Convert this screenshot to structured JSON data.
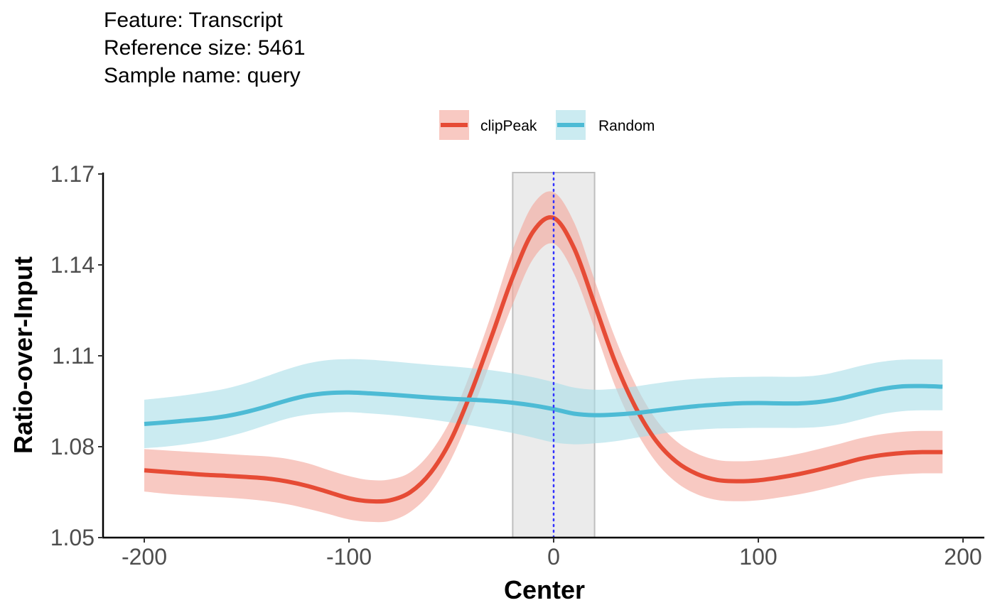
{
  "chart_data": {
    "type": "line",
    "title_lines": [
      "Feature: Transcript",
      "Reference size: 5461",
      "Sample name: query"
    ],
    "xlabel": "Center",
    "ylabel": "Ratio-over-Input",
    "xlim": [
      -200,
      200
    ],
    "ylim": [
      1.05,
      1.17
    ],
    "xticks": [
      "-200",
      "-100",
      "0",
      "100",
      "200"
    ],
    "yticks": [
      "1.05",
      "1.08",
      "1.11",
      "1.14",
      "1.17"
    ],
    "legend_position": "top",
    "grid": false,
    "highlight_region": [
      -20,
      20
    ],
    "center_line": 0,
    "x": [
      -200,
      -190,
      -180,
      -170,
      -160,
      -150,
      -140,
      -130,
      -120,
      -110,
      -100,
      -90,
      -80,
      -70,
      -60,
      -50,
      -40,
      -30,
      -20,
      -10,
      0,
      10,
      20,
      30,
      40,
      50,
      60,
      70,
      80,
      90,
      100,
      110,
      120,
      130,
      140,
      150,
      160,
      170,
      180,
      190
    ],
    "series": [
      {
        "name": "clipPeak",
        "color": "#E64B35",
        "band_color": "#F3A59A",
        "values": [
          1.0722,
          1.0717,
          1.0712,
          1.0707,
          1.0704,
          1.07,
          1.0695,
          1.0685,
          1.067,
          1.065,
          1.063,
          1.062,
          1.0623,
          1.065,
          1.0715,
          1.0825,
          1.0985,
          1.117,
          1.136,
          1.151,
          1.1555,
          1.1455,
          1.127,
          1.108,
          1.093,
          1.082,
          1.075,
          1.071,
          1.069,
          1.0686,
          1.0689,
          1.0698,
          1.071,
          1.0725,
          1.0742,
          1.076,
          1.0772,
          1.0779,
          1.0782,
          1.0782
        ],
        "lower": [
          1.0652,
          1.0645,
          1.064,
          1.0636,
          1.0632,
          1.0627,
          1.062,
          1.061,
          1.0595,
          1.0578,
          1.056,
          1.0552,
          1.0555,
          1.0585,
          1.065,
          1.076,
          1.0915,
          1.1095,
          1.127,
          1.142,
          1.147,
          1.137,
          1.119,
          1.1,
          1.0855,
          1.075,
          1.0682,
          1.0643,
          1.0624,
          1.062,
          1.0623,
          1.0632,
          1.0643,
          1.0657,
          1.0674,
          1.0692,
          1.0703,
          1.0709,
          1.0712,
          1.0712
        ],
        "upper": [
          1.0792,
          1.0788,
          1.0784,
          1.078,
          1.0776,
          1.0772,
          1.0768,
          1.076,
          1.0745,
          1.0723,
          1.0703,
          1.069,
          1.0692,
          1.0716,
          1.0783,
          1.0893,
          1.1055,
          1.1245,
          1.145,
          1.16,
          1.164,
          1.154,
          1.135,
          1.116,
          1.1005,
          1.089,
          1.0818,
          1.0777,
          1.0756,
          1.0752,
          1.0755,
          1.0764,
          1.0777,
          1.0793,
          1.081,
          1.0828,
          1.0841,
          1.0849,
          1.0852,
          1.0852
        ]
      },
      {
        "name": "Random",
        "color": "#4DBBD5",
        "band_color": "#A9DDE8",
        "values": [
          1.0875,
          1.088,
          1.0886,
          1.0892,
          1.0901,
          1.0915,
          1.0933,
          1.0953,
          1.0969,
          1.0977,
          1.0979,
          1.0976,
          1.0972,
          1.0967,
          1.0962,
          1.0958,
          1.0955,
          1.0951,
          1.0945,
          1.0936,
          1.0924,
          1.0909,
          1.0904,
          1.0906,
          1.0911,
          1.0919,
          1.0927,
          1.0934,
          1.0939,
          1.0943,
          1.0944,
          1.0943,
          1.0943,
          1.0948,
          1.0959,
          1.0975,
          1.099,
          1.0999,
          1.1,
          1.0998
        ],
        "lower": [
          1.0795,
          1.08,
          1.0808,
          1.0818,
          1.0832,
          1.085,
          1.0872,
          1.0893,
          1.0906,
          1.0912,
          1.0914,
          1.091,
          1.0905,
          1.0898,
          1.089,
          1.088,
          1.087,
          1.0858,
          1.0845,
          1.083,
          1.0814,
          1.0808,
          1.0811,
          1.0818,
          1.0829,
          1.084,
          1.085,
          1.0856,
          1.086,
          1.0861,
          1.0862,
          1.0862,
          1.0862,
          1.0865,
          1.0874,
          1.089,
          1.0907,
          1.0917,
          1.092,
          1.092
        ],
        "upper": [
          1.0955,
          1.0962,
          1.097,
          1.098,
          1.0992,
          1.101,
          1.1033,
          1.1056,
          1.1075,
          1.1086,
          1.1089,
          1.1087,
          1.1082,
          1.1076,
          1.107,
          1.1065,
          1.1059,
          1.1052,
          1.1042,
          1.1029,
          1.1013,
          1.0995,
          1.0988,
          1.0991,
          1.0999,
          1.1009,
          1.1018,
          1.1024,
          1.1028,
          1.103,
          1.1031,
          1.1031,
          1.1031,
          1.1036,
          1.105,
          1.1067,
          1.108,
          1.1087,
          1.1088,
          1.1088
        ]
      }
    ]
  },
  "colors": {
    "region_fill": "#EBEBEB",
    "region_stroke": "#BEBEBE",
    "center_line": "#3333FF",
    "axis": "#000000"
  }
}
